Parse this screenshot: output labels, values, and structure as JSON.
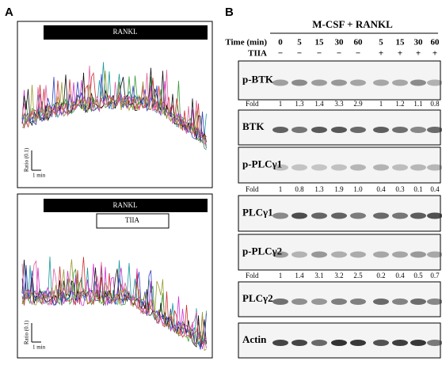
{
  "panel_a": {
    "label": "A",
    "top": {
      "bar": "RANKL",
      "y_label": "Ratio (0.1)",
      "x_label": "1 min"
    },
    "bottom": {
      "bar": "RANKL",
      "inhibitor": "TIIA",
      "y_label": "Ratio (0.1)",
      "x_label": "1 min"
    }
  },
  "panel_b": {
    "label": "B",
    "treatment": "M-CSF + RANKL",
    "time_label": "Time (min)",
    "times": [
      0,
      5,
      15,
      30,
      60,
      5,
      15,
      30,
      60
    ],
    "tiia_label": "TIIA",
    "tiia": [
      "−",
      "−",
      "−",
      "−",
      "−",
      "+",
      "+",
      "+",
      "+"
    ],
    "blots": [
      {
        "name": "p-BTK",
        "fold_label": "Fold",
        "fold": [
          "1",
          "1.3",
          "1.4",
          "3.3",
          "2.9",
          "1",
          "1.2",
          "1.1",
          "0.8"
        ]
      },
      {
        "name": "BTK"
      },
      {
        "name": "p-PLCγ1",
        "fold_label": "Fold",
        "fold": [
          "1",
          "0.8",
          "1.3",
          "1.9",
          "1.0",
          "0.4",
          "0.3",
          "0.1",
          "0.4"
        ]
      },
      {
        "name": "PLCγ1"
      },
      {
        "name": "p-PLCγ2",
        "fold_label": "Fold",
        "fold": [
          "1",
          "1.4",
          "3.1",
          "3.2",
          "2.5",
          "0.2",
          "0.4",
          "0.5",
          "0.7"
        ]
      },
      {
        "name": "PLCγ2"
      },
      {
        "name": "Actin"
      }
    ]
  }
}
